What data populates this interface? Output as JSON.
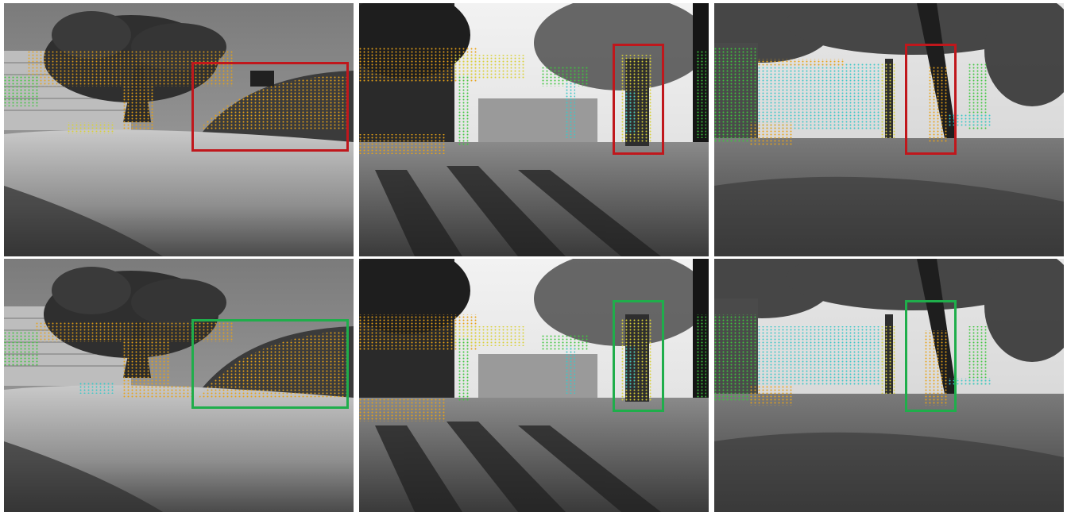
{
  "figure": {
    "rows": [
      {
        "box_color": "#c0171c",
        "panels": [
          {
            "scene": "pine-lawn"
          },
          {
            "scene": "shadow-plaza"
          },
          {
            "scene": "tree-park"
          }
        ]
      },
      {
        "box_color": "#1fae4b",
        "panels": [
          {
            "scene": "pine-lawn"
          },
          {
            "scene": "shadow-plaza"
          },
          {
            "scene": "tree-park"
          }
        ]
      }
    ],
    "point_colors": {
      "orange": "#e8a317",
      "yellow": "#d9d13a",
      "green": "#3ec73e",
      "cyan": "#3cc8c8"
    }
  }
}
